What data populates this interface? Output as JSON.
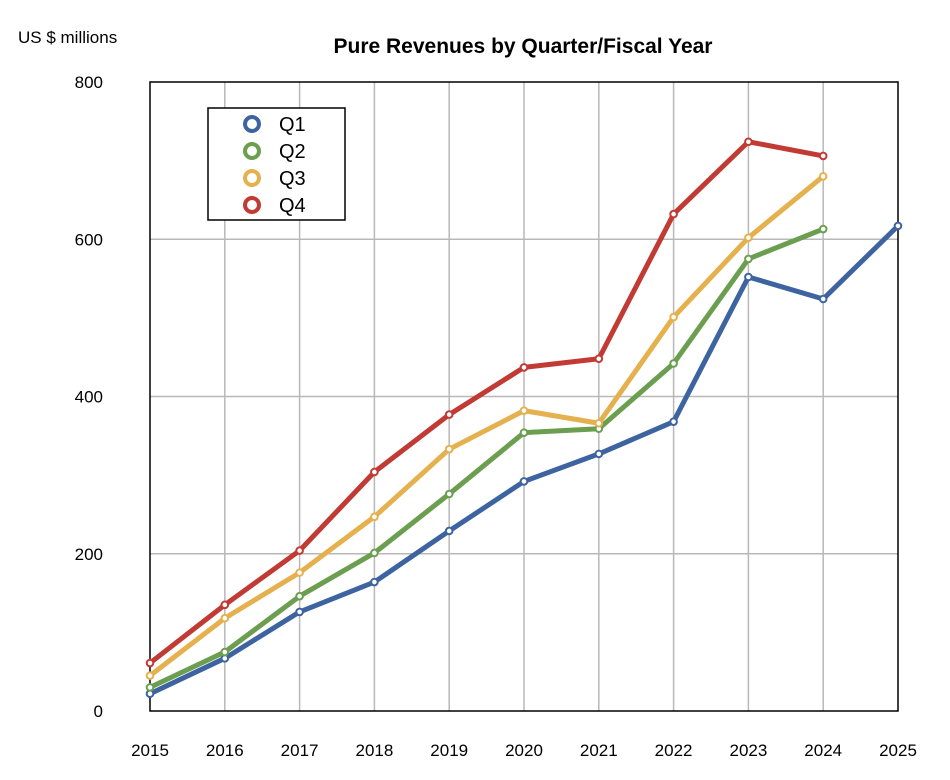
{
  "chart_data": {
    "type": "line",
    "title": "Pure Revenues by Quarter/Fiscal Year",
    "y_unit_label": "US $ millions",
    "xlabel": "",
    "ylabel": "",
    "x": [
      2015,
      2016,
      2017,
      2018,
      2019,
      2020,
      2021,
      2022,
      2023,
      2024,
      2025
    ],
    "x_tick_labels": [
      "2015",
      "2016",
      "2017",
      "2018",
      "2019",
      "2020",
      "2021",
      "2022",
      "2023",
      "2024",
      "2025"
    ],
    "ylim": [
      0,
      800
    ],
    "y_ticks": [
      0,
      200,
      400,
      600,
      800
    ],
    "y_tick_labels": [
      "0",
      "200",
      "400",
      "600",
      "800"
    ],
    "grid": true,
    "legend_position": "top-left",
    "series": [
      {
        "name": "Q1",
        "color": "#3D64A0",
        "values": [
          22,
          67,
          126,
          164,
          229,
          292,
          327,
          368,
          552,
          524,
          617
        ]
      },
      {
        "name": "Q2",
        "color": "#6C9E50",
        "values": [
          30,
          75,
          146,
          201,
          276,
          354,
          359,
          442,
          575,
          613,
          null
        ]
      },
      {
        "name": "Q3",
        "color": "#E5B14E",
        "values": [
          45,
          118,
          176,
          247,
          333,
          382,
          366,
          501,
          602,
          680,
          null
        ]
      },
      {
        "name": "Q4",
        "color": "#C13A34",
        "values": [
          61,
          135,
          204,
          304,
          377,
          437,
          448,
          632,
          724,
          706,
          null
        ]
      }
    ]
  }
}
